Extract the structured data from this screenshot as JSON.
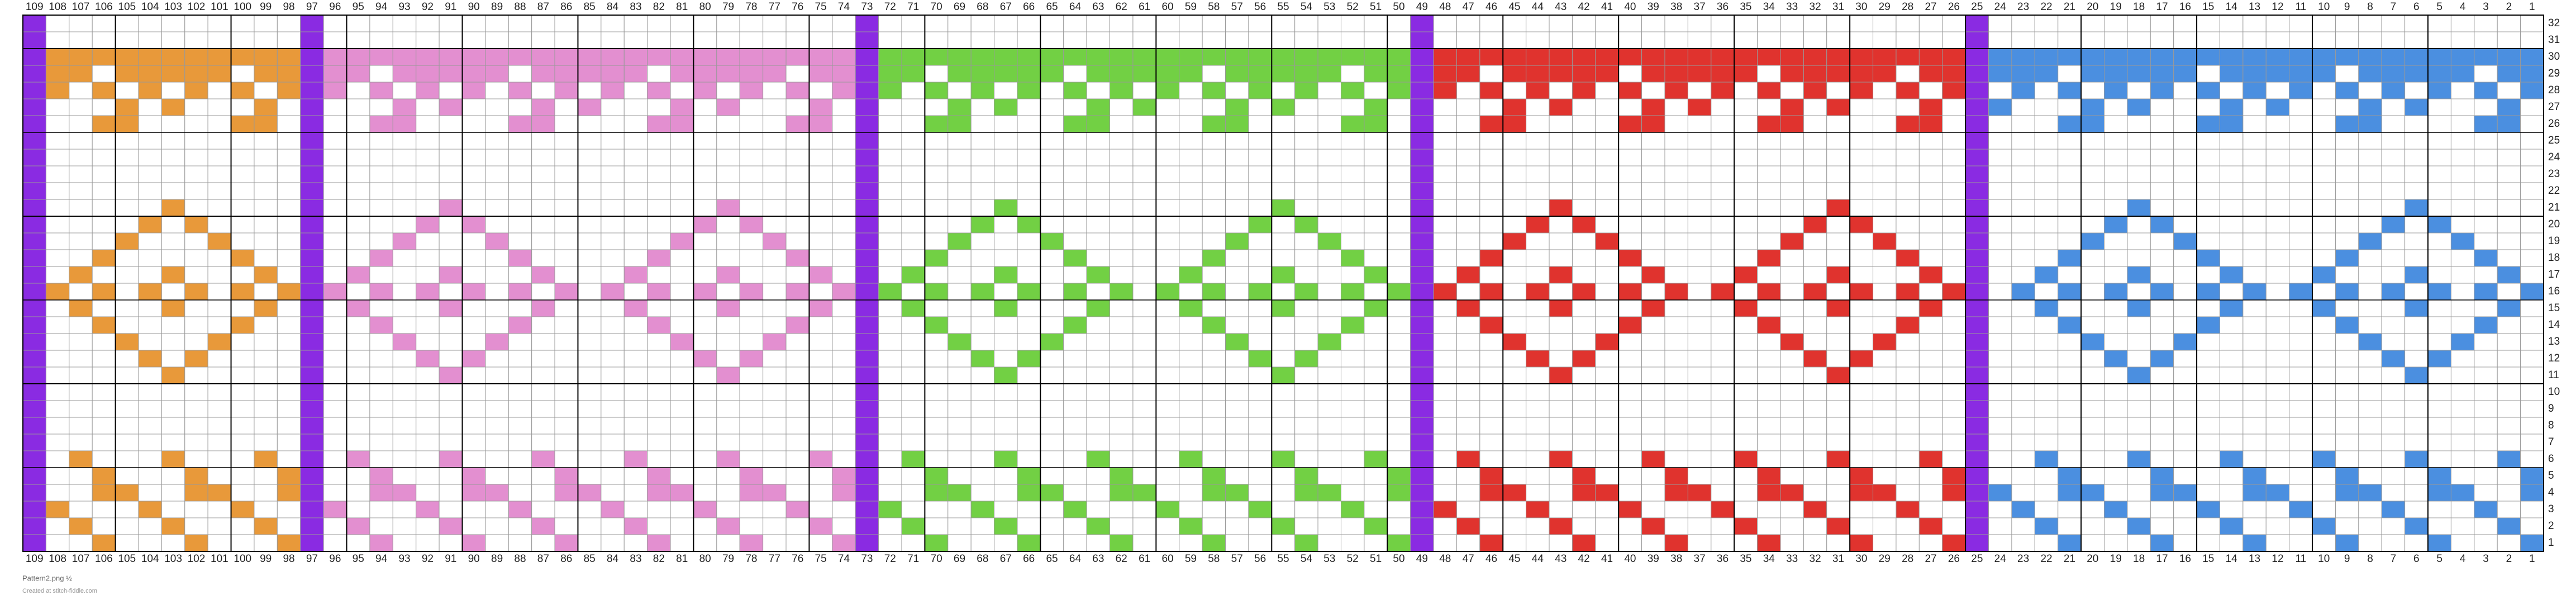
{
  "columns": [
    109,
    108,
    107,
    106,
    105,
    104,
    103,
    102,
    101,
    100,
    99,
    98,
    97,
    96,
    95,
    94,
    93,
    92,
    91,
    90,
    89,
    88,
    87,
    86,
    85,
    84,
    83,
    82,
    81,
    80,
    79,
    78,
    77,
    76,
    75,
    74,
    73,
    72,
    71,
    70,
    69,
    68,
    67,
    66,
    65,
    64,
    63,
    62,
    61,
    60,
    59,
    58,
    57,
    56,
    55,
    54,
    53,
    52,
    51,
    50,
    49,
    48,
    47,
    46,
    45,
    44,
    43,
    42,
    41,
    40,
    39,
    38,
    37,
    36,
    35,
    34,
    33,
    32,
    31,
    30,
    29,
    28,
    27,
    26,
    25,
    24,
    23,
    22,
    21,
    20,
    19,
    18,
    17,
    16,
    15,
    14,
    13,
    12,
    11,
    10,
    9,
    8,
    7,
    6,
    5,
    4,
    3,
    2,
    1
  ],
  "rows": [
    32,
    31,
    30,
    29,
    28,
    27,
    26,
    25,
    24,
    23,
    22,
    21,
    20,
    19,
    18,
    17,
    16,
    15,
    14,
    13,
    12,
    11,
    10,
    9,
    8,
    7,
    6,
    5,
    4,
    3,
    2,
    1
  ],
  "footer": {
    "title": "Pattern2.png ½",
    "credit": "Created at stitch-fiddle.com"
  }
}
